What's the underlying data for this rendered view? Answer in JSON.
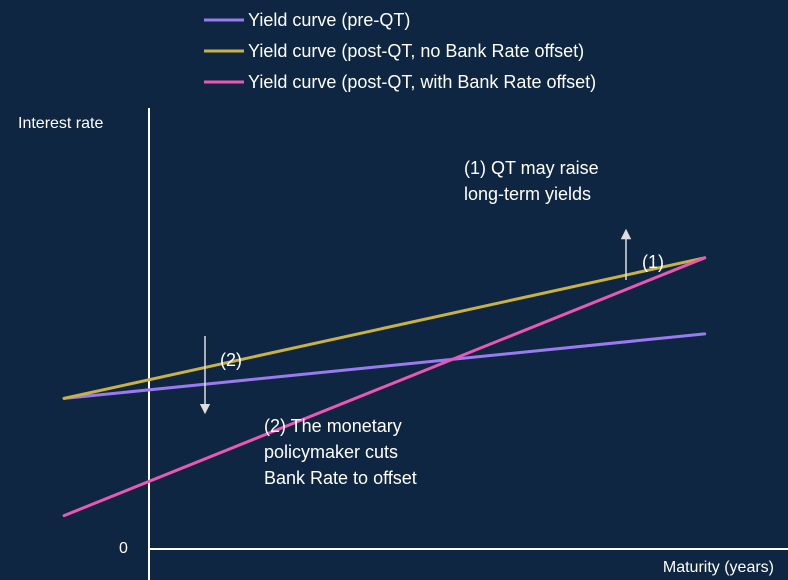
{
  "chart_data": {
    "type": "line",
    "xlabel": "Maturity (years)",
    "ylabel": "Interest rate",
    "y_zero_label": "0",
    "background": "#0e2641",
    "axis_color": "#ffffff",
    "legend_placement": "top",
    "series": [
      {
        "name": "Yield curve (pre-QT)",
        "color": "#9b79f0",
        "points": [
          [
            0,
            3.0
          ],
          [
            10,
            4.1
          ]
        ]
      },
      {
        "name": "Yield curve (post-QT, no Bank Rate offset)",
        "color": "#c9b245",
        "points": [
          [
            0,
            3.0
          ],
          [
            10,
            5.4
          ]
        ]
      },
      {
        "name": "Yield curve (post-QT, with Bank Rate offset)",
        "color": "#ec56b4",
        "points": [
          [
            0,
            1.0
          ],
          [
            10,
            5.4
          ]
        ]
      }
    ],
    "xlim": [
      -1,
      11.3
    ],
    "ylim": [
      -0.1,
      9.8
    ],
    "annotations": [
      {
        "lines": [
          "(1) QT may raise",
          "long-term yields"
        ],
        "label": "(1)"
      },
      {
        "lines": [
          "(2) The monetary",
          "policymaker cuts",
          "Bank Rate to offset"
        ],
        "label": "(2)"
      }
    ]
  }
}
